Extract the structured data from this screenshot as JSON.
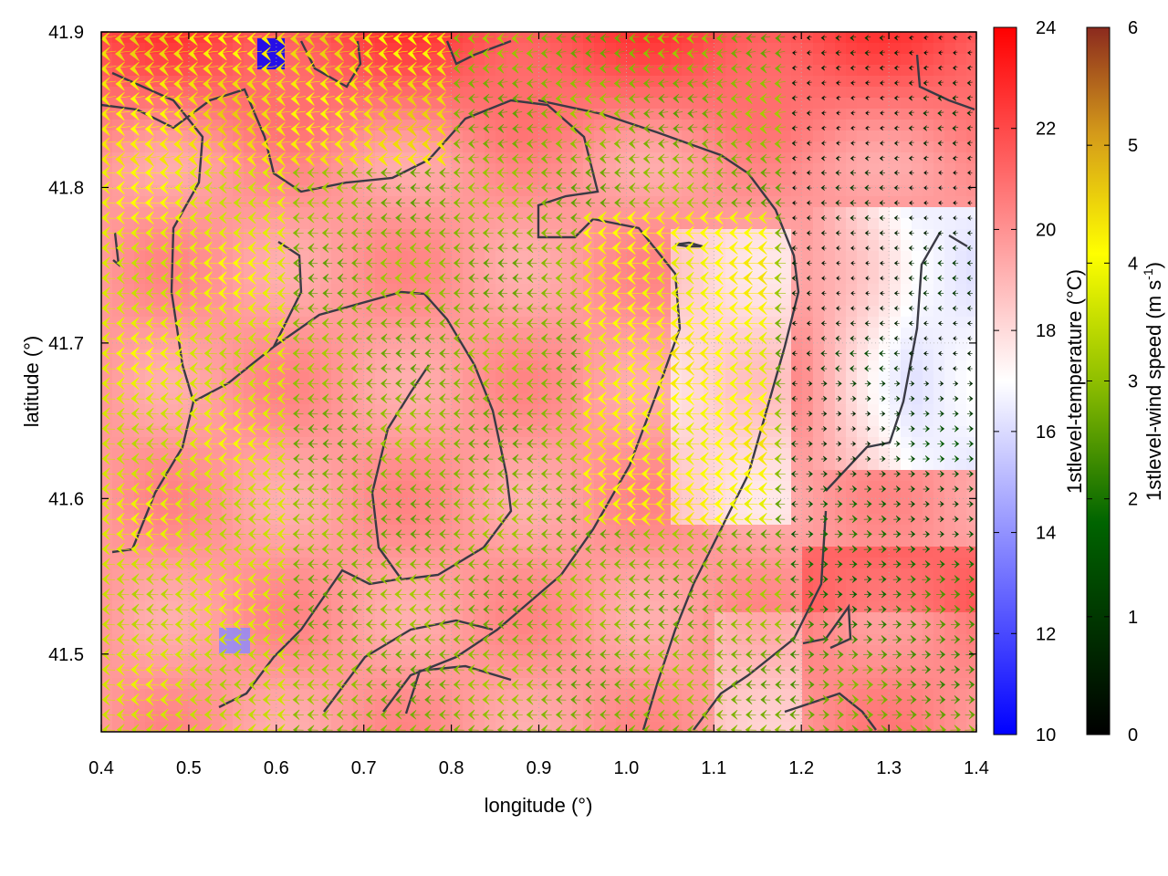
{
  "chart_data": {
    "type": "heatmap",
    "title": "",
    "xlabel": "longitude (°)",
    "ylabel": "latitude (°)",
    "xlim": [
      0.4,
      1.4
    ],
    "ylim": [
      41.45,
      41.9
    ],
    "x_ticks": [
      "0.4",
      "0.5",
      "0.6",
      "0.7",
      "0.8",
      "0.9",
      "1.0",
      "1.1",
      "1.2",
      "1.3",
      "1.4"
    ],
    "x_tick_values": [
      0.4,
      0.5,
      0.6,
      0.7,
      0.8,
      0.9,
      1.0,
      1.1,
      1.2,
      1.3,
      1.4
    ],
    "y_ticks": [
      "41.5",
      "41.6",
      "41.7",
      "41.8",
      "41.9"
    ],
    "y_tick_values": [
      41.5,
      41.6,
      41.7,
      41.8,
      41.9
    ],
    "grid": true,
    "temperature_colorbar": {
      "label": "1stlevel-temperature (°C)",
      "range": [
        10,
        24
      ],
      "ticks": [
        "10",
        "12",
        "14",
        "16",
        "18",
        "20",
        "22",
        "24"
      ],
      "tick_values": [
        10,
        12,
        14,
        16,
        18,
        20,
        22,
        24
      ],
      "colors": [
        "#0000ff",
        "#ffffff",
        "#ff0000"
      ]
    },
    "wind_colorbar": {
      "label_main": "1stlevel-wind speed (m s",
      "label_sup": "-1",
      "label_end": ")",
      "range": [
        0,
        6
      ],
      "ticks": [
        "0",
        "1",
        "2",
        "3",
        "4",
        "5",
        "6"
      ],
      "tick_values": [
        0,
        1,
        2,
        3,
        4,
        5,
        6
      ],
      "colors": [
        "#000000",
        "#006400",
        "#8fbf00",
        "#ffff00",
        "#d49a1a",
        "#8b2a1e"
      ]
    },
    "coastline_color": "#3a3a44"
  }
}
